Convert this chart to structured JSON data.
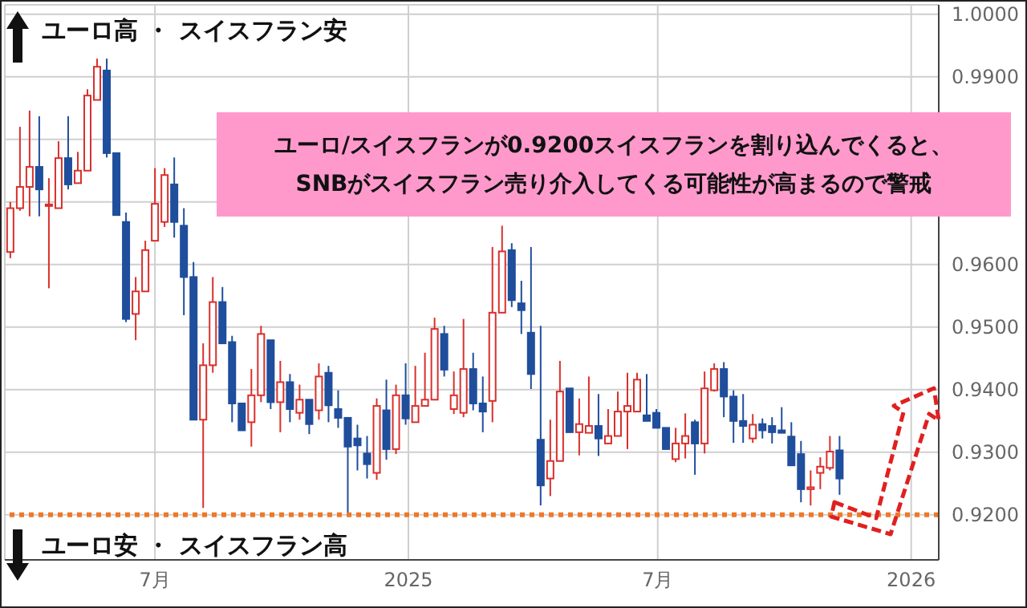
{
  "chart_data": {
    "type": "candlestick",
    "x": [
      "2024-03-18",
      "2024-03-25",
      "2024-04-01",
      "2024-04-08",
      "2024-04-15",
      "2024-04-22",
      "2024-04-29",
      "2024-05-06",
      "2024-05-13",
      "2024-05-20",
      "2024-05-27",
      "2024-06-03",
      "2024-06-10",
      "2024-06-17",
      "2024-06-24",
      "2024-07-01",
      "2024-07-08",
      "2024-07-15",
      "2024-07-22",
      "2024-07-29",
      "2024-08-05",
      "2024-08-12",
      "2024-08-19",
      "2024-08-26",
      "2024-09-02",
      "2024-09-09",
      "2024-09-16",
      "2024-09-23",
      "2024-09-30",
      "2024-10-07",
      "2024-10-14",
      "2024-10-21",
      "2024-10-28",
      "2024-11-04",
      "2024-11-11",
      "2024-11-18",
      "2024-11-25",
      "2024-12-02",
      "2024-12-09",
      "2024-12-16",
      "2024-12-23",
      "2024-12-30",
      "2025-01-06",
      "2025-01-13",
      "2025-01-20",
      "2025-01-27",
      "2025-02-03",
      "2025-02-10",
      "2025-02-17",
      "2025-02-24",
      "2025-03-03",
      "2025-03-10",
      "2025-03-17",
      "2025-03-24",
      "2025-03-31",
      "2025-04-07",
      "2025-04-14",
      "2025-04-21",
      "2025-04-28",
      "2025-05-05",
      "2025-05-12",
      "2025-05-19",
      "2025-05-26",
      "2025-06-02",
      "2025-06-09",
      "2025-06-16",
      "2025-06-23",
      "2025-06-30",
      "2025-07-07",
      "2025-07-14",
      "2025-07-21",
      "2025-07-28",
      "2025-08-04",
      "2025-08-11",
      "2025-08-18",
      "2025-08-25",
      "2025-09-01",
      "2025-09-08",
      "2025-09-15",
      "2025-09-22",
      "2025-09-29",
      "2025-10-06",
      "2025-10-13",
      "2025-10-20",
      "2025-10-27",
      "2025-11-03",
      "2025-11-10"
    ],
    "ohlc": [
      [
        0.962,
        0.97,
        0.961,
        0.969
      ],
      [
        0.969,
        0.982,
        0.9686,
        0.9724
      ],
      [
        0.9724,
        0.9846,
        0.9677,
        0.9756
      ],
      [
        0.9756,
        0.9837,
        0.9677,
        0.972
      ],
      [
        0.9694,
        0.9738,
        0.9562,
        0.9696
      ],
      [
        0.969,
        0.9797,
        0.969,
        0.977
      ],
      [
        0.977,
        0.9837,
        0.972,
        0.9728
      ],
      [
        0.973,
        0.978,
        0.973,
        0.975
      ],
      [
        0.975,
        0.988,
        0.975,
        0.987
      ],
      [
        0.9863,
        0.9929,
        0.9863,
        0.9916
      ],
      [
        0.991,
        0.9929,
        0.9771,
        0.9778
      ],
      [
        0.9778,
        0.9778,
        0.9679,
        0.9679
      ],
      [
        0.9668,
        0.9683,
        0.9508,
        0.9513
      ],
      [
        0.9521,
        0.958,
        0.9479,
        0.9557
      ],
      [
        0.9557,
        0.9638,
        0.9557,
        0.9623
      ],
      [
        0.9638,
        0.9754,
        0.9638,
        0.9697
      ],
      [
        0.9668,
        0.9754,
        0.966,
        0.9743
      ],
      [
        0.9728,
        0.9771,
        0.9643,
        0.9668
      ],
      [
        0.9662,
        0.969,
        0.9519,
        0.958
      ],
      [
        0.958,
        0.9604,
        0.9352,
        0.9352
      ],
      [
        0.9352,
        0.9474,
        0.9211,
        0.9439
      ],
      [
        0.9439,
        0.958,
        0.9427,
        0.954
      ],
      [
        0.954,
        0.9564,
        0.9474,
        0.9474
      ],
      [
        0.9476,
        0.9486,
        0.9348,
        0.9378
      ],
      [
        0.9378,
        0.9378,
        0.9335,
        0.9335
      ],
      [
        0.9348,
        0.9433,
        0.9309,
        0.9391
      ],
      [
        0.9391,
        0.9502,
        0.938,
        0.9489
      ],
      [
        0.9479,
        0.9479,
        0.9369,
        0.938
      ],
      [
        0.938,
        0.9446,
        0.9332,
        0.9412
      ],
      [
        0.9412,
        0.9425,
        0.9348,
        0.9369
      ],
      [
        0.9363,
        0.9408,
        0.9352,
        0.9384
      ],
      [
        0.9384,
        0.9384,
        0.9329,
        0.9345
      ],
      [
        0.9367,
        0.9442,
        0.9352,
        0.9421
      ],
      [
        0.9427,
        0.9438,
        0.9348,
        0.9375
      ],
      [
        0.9369,
        0.9399,
        0.9339,
        0.9355
      ],
      [
        0.9355,
        0.9355,
        0.9203,
        0.9309
      ],
      [
        0.9322,
        0.9344,
        0.9271,
        0.9311
      ],
      [
        0.9298,
        0.9326,
        0.9258,
        0.9281
      ],
      [
        0.9267,
        0.9386,
        0.9256,
        0.9374
      ],
      [
        0.9367,
        0.9416,
        0.9288,
        0.9305
      ],
      [
        0.9305,
        0.9408,
        0.9297,
        0.9391
      ],
      [
        0.9391,
        0.9442,
        0.9344,
        0.9354
      ],
      [
        0.9348,
        0.9438,
        0.9348,
        0.9374
      ],
      [
        0.9374,
        0.9459,
        0.9374,
        0.9384
      ],
      [
        0.9384,
        0.9515,
        0.9384,
        0.9497
      ],
      [
        0.9489,
        0.9502,
        0.9421,
        0.9432
      ],
      [
        0.9369,
        0.9429,
        0.9361,
        0.9391
      ],
      [
        0.9363,
        0.9513,
        0.9356,
        0.9433
      ],
      [
        0.9433,
        0.9459,
        0.9367,
        0.9378
      ],
      [
        0.9378,
        0.9421,
        0.9332,
        0.9365
      ],
      [
        0.9382,
        0.9628,
        0.9348,
        0.9523
      ],
      [
        0.9523,
        0.9662,
        0.9523,
        0.9621
      ],
      [
        0.9623,
        0.9634,
        0.9532,
        0.9543
      ],
      [
        0.9538,
        0.9574,
        0.9489,
        0.9527
      ],
      [
        0.9491,
        0.9628,
        0.9401,
        0.9425
      ],
      [
        0.932,
        0.9502,
        0.9215,
        0.9247
      ],
      [
        0.9258,
        0.9352,
        0.923,
        0.9286
      ],
      [
        0.9286,
        0.9446,
        0.9286,
        0.9397
      ],
      [
        0.9402,
        0.9402,
        0.9332,
        0.9332
      ],
      [
        0.9332,
        0.9386,
        0.9295,
        0.9345
      ],
      [
        0.9331,
        0.9421,
        0.9331,
        0.9342
      ],
      [
        0.9342,
        0.9393,
        0.9294,
        0.9322
      ],
      [
        0.9314,
        0.9369,
        0.9314,
        0.9326
      ],
      [
        0.9326,
        0.9397,
        0.9326,
        0.9365
      ],
      [
        0.9365,
        0.9427,
        0.9305,
        0.9374
      ],
      [
        0.9365,
        0.9427,
        0.9365,
        0.9416
      ],
      [
        0.9359,
        0.9425,
        0.935,
        0.935
      ],
      [
        0.9363,
        0.9369,
        0.9339,
        0.9339
      ],
      [
        0.9339,
        0.9339,
        0.9305,
        0.9305
      ],
      [
        0.9289,
        0.9339,
        0.9284,
        0.9314
      ],
      [
        0.9314,
        0.9362,
        0.929,
        0.9326
      ],
      [
        0.9348,
        0.9352,
        0.9264,
        0.9314
      ],
      [
        0.9314,
        0.9429,
        0.9298,
        0.9402
      ],
      [
        0.9399,
        0.9442,
        0.9397,
        0.9433
      ],
      [
        0.9433,
        0.9444,
        0.9356,
        0.9389
      ],
      [
        0.9389,
        0.9399,
        0.9315,
        0.935
      ],
      [
        0.935,
        0.9393,
        0.9315,
        0.9342
      ],
      [
        0.9322,
        0.9361,
        0.9315,
        0.9344
      ],
      [
        0.9345,
        0.9354,
        0.9322,
        0.9335
      ],
      [
        0.9342,
        0.9356,
        0.9314,
        0.9332
      ],
      [
        0.9335,
        0.9372,
        0.9331,
        0.9331
      ],
      [
        0.9325,
        0.9348,
        0.9279,
        0.9279
      ],
      [
        0.9297,
        0.9318,
        0.922,
        0.9241
      ],
      [
        0.9241,
        0.9271,
        0.9215,
        0.9244
      ],
      [
        0.9267,
        0.9292,
        0.9241,
        0.9277
      ],
      [
        0.9275,
        0.9326,
        0.9271,
        0.9301
      ],
      [
        0.9303,
        0.9326,
        0.9232,
        0.9258
      ]
    ],
    "xlim": [
      "2024-03-14",
      "2026-01-21"
    ],
    "xticks": [
      {
        "value": "2024-07-01",
        "label": "7月"
      },
      {
        "value": "2025-01-01",
        "label": "2025"
      },
      {
        "value": "2025-07-01",
        "label": "7月"
      },
      {
        "value": "2026-01-01",
        "label": "2026"
      }
    ],
    "ylim": [
      0.9128,
      1.0015
    ],
    "yticks": [
      {
        "value": 0.92,
        "label": "0.9200"
      },
      {
        "value": 0.93,
        "label": "0.9300"
      },
      {
        "value": 0.94,
        "label": "0.9400"
      },
      {
        "value": 0.95,
        "label": "0.9500"
      },
      {
        "value": 0.96,
        "label": "0.9600"
      },
      {
        "value": 0.97,
        "label": null
      },
      {
        "value": 0.98,
        "label": null
      },
      {
        "value": 0.99,
        "label": "0.9900"
      },
      {
        "value": 1.0,
        "label": "1.0000"
      }
    ],
    "grid": true,
    "ref_lines": [
      {
        "axis": "y",
        "value": 0.92,
        "label": null,
        "color": "#f07828",
        "line_style": "dotted"
      }
    ],
    "annotations": [
      "ユーロ高 ・ スイスフラン安",
      "ユーロ安 ・ スイスフラン高",
      "ユーロ/スイスフランが0.9200スイスフランを割り込んでくると、\nSNBがスイスフラン売り介入してくる可能性が高まるので警戒"
    ]
  }
}
